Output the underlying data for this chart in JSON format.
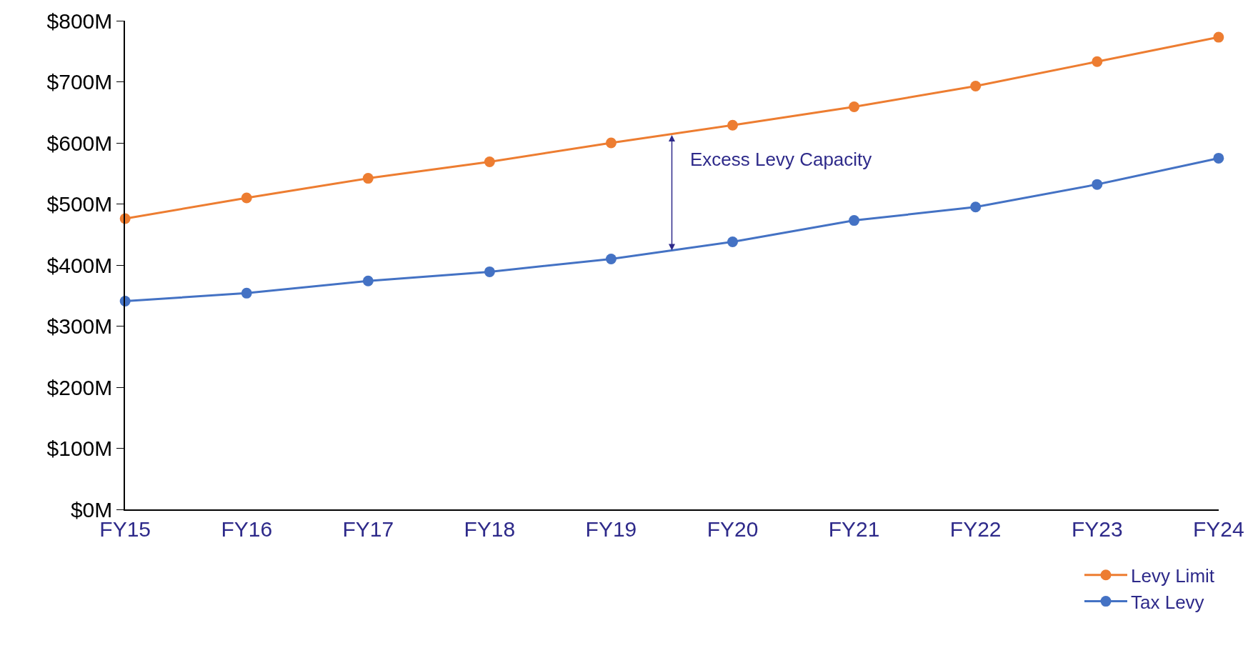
{
  "chart_data": {
    "type": "line",
    "categories": [
      "FY15",
      "FY16",
      "FY17",
      "FY18",
      "FY19",
      "FY20",
      "FY21",
      "FY22",
      "FY23",
      "FY24"
    ],
    "series": [
      {
        "name": "Levy Limit",
        "color": "#ed7d31",
        "values": [
          476,
          510,
          542,
          569,
          600,
          629,
          659,
          693,
          733,
          773
        ]
      },
      {
        "name": "Tax Levy",
        "color": "#4472c4",
        "values": [
          341,
          354,
          374,
          389,
          410,
          438,
          473,
          495,
          532,
          575
        ]
      }
    ],
    "ylim": [
      0,
      800
    ],
    "yticks": [
      {
        "value": 0,
        "label": "$0M"
      },
      {
        "value": 100,
        "label": "$100M"
      },
      {
        "value": 200,
        "label": "$200M"
      },
      {
        "value": 300,
        "label": "$300M"
      },
      {
        "value": 400,
        "label": "$400M"
      },
      {
        "value": 500,
        "label": "$500M"
      },
      {
        "value": 600,
        "label": "$600M"
      },
      {
        "value": 700,
        "label": "$700M"
      },
      {
        "value": 800,
        "label": "$800M"
      }
    ],
    "annotations": [
      "Excess Levy Capacity"
    ],
    "grid": false,
    "legend": "bottom right",
    "marker": "circle",
    "line_style": "solid"
  }
}
